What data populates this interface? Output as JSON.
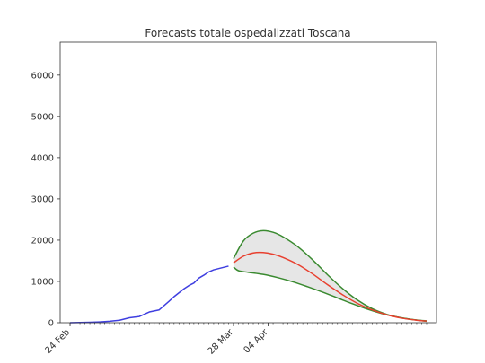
{
  "chart_data": {
    "type": "line",
    "title": "Forecasts totale ospedalizzati Toscana",
    "xlabel": "",
    "ylabel": "",
    "x_tick_labels": [
      {
        "date": "2020-02-24",
        "label": "24 Feb"
      },
      {
        "date": "2020-03-28",
        "label": "28 Mar"
      },
      {
        "date": "2020-04-04",
        "label": "04 Apr"
      }
    ],
    "xlim": [
      "2020-02-22",
      "2020-05-08"
    ],
    "ylim": [
      0,
      6800
    ],
    "yticks": [
      0,
      1000,
      2000,
      3000,
      4000,
      5000,
      6000
    ],
    "minor_tick_dates": {
      "start": "2020-02-24",
      "end": "2020-05-06"
    },
    "grid": false,
    "legend": "none",
    "series": [
      {
        "role": "observed",
        "color": "#3f3fe0",
        "x": [
          "2020-02-24",
          "2020-02-26",
          "2020-02-28",
          "2020-03-01",
          "2020-03-03",
          "2020-03-05",
          "2020-03-07",
          "2020-03-09",
          "2020-03-11",
          "2020-03-13",
          "2020-03-15",
          "2020-03-16",
          "2020-03-18",
          "2020-03-19",
          "2020-03-20",
          "2020-03-21",
          "2020-03-22",
          "2020-03-23",
          "2020-03-24",
          "2020-03-25",
          "2020-03-26",
          "2020-03-27"
        ],
        "y": [
          0,
          5,
          10,
          20,
          35,
          60,
          120,
          150,
          260,
          310,
          520,
          630,
          820,
          900,
          960,
          1080,
          1150,
          1230,
          1280,
          1310,
          1340,
          1370
        ]
      },
      {
        "role": "forecast",
        "color": "#e8402f",
        "x": [
          "2020-03-28",
          "2020-03-30",
          "2020-04-01",
          "2020-04-03",
          "2020-04-05",
          "2020-04-07",
          "2020-04-10",
          "2020-04-13",
          "2020-04-16",
          "2020-04-19",
          "2020-04-22",
          "2020-04-25",
          "2020-04-28",
          "2020-05-01",
          "2020-05-04",
          "2020-05-06"
        ],
        "y": [
          1450,
          1610,
          1690,
          1700,
          1660,
          1580,
          1410,
          1180,
          920,
          680,
          470,
          310,
          190,
          110,
          60,
          40
        ]
      },
      {
        "role": "upper_bound",
        "color": "#3a8a30",
        "x": [
          "2020-03-28",
          "2020-03-30",
          "2020-04-01",
          "2020-04-03",
          "2020-04-05",
          "2020-04-07",
          "2020-04-10",
          "2020-04-13",
          "2020-04-16",
          "2020-04-19",
          "2020-04-22",
          "2020-04-25",
          "2020-04-28",
          "2020-05-01",
          "2020-05-04",
          "2020-05-06"
        ],
        "y": [
          1550,
          1980,
          2170,
          2230,
          2190,
          2080,
          1840,
          1520,
          1160,
          830,
          550,
          340,
          200,
          115,
          65,
          45
        ]
      },
      {
        "role": "lower_bound",
        "color": "#3a8a30",
        "x": [
          "2020-03-28",
          "2020-03-29",
          "2020-03-31",
          "2020-04-03",
          "2020-04-06",
          "2020-04-09",
          "2020-04-12",
          "2020-04-15",
          "2020-04-18",
          "2020-04-21",
          "2020-04-24",
          "2020-04-27",
          "2020-04-30",
          "2020-05-03",
          "2020-05-06"
        ],
        "y": [
          1350,
          1260,
          1220,
          1170,
          1090,
          990,
          870,
          740,
          600,
          460,
          330,
          220,
          140,
          80,
          35
        ]
      }
    ],
    "band_fill": "#e6e6e6"
  }
}
